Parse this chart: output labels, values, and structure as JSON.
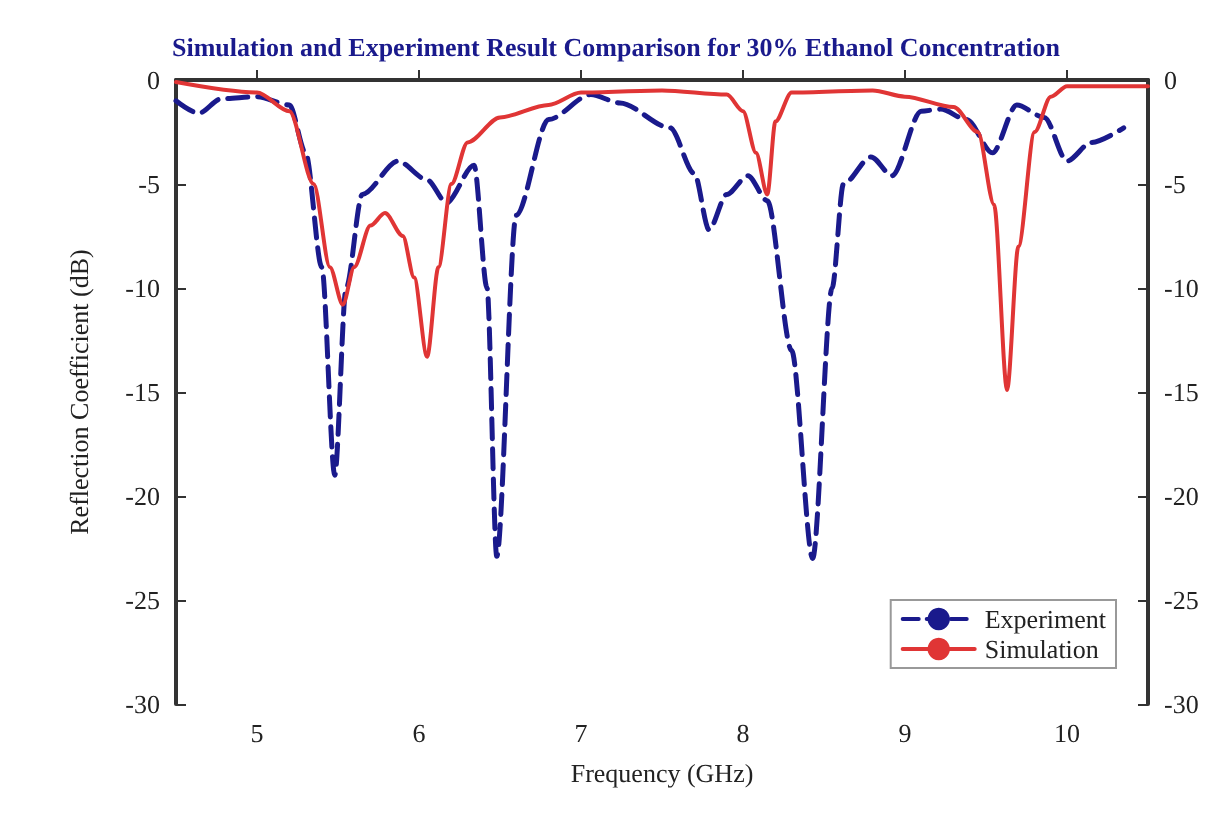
{
  "chart_data": {
    "type": "line",
    "title": "Simulation and Experiment Result Comparison for 30% Ethanol Concentration",
    "xlabel": "Frequency (GHz)",
    "ylabel": "Reflection Coefficient (dB)",
    "xlim": [
      4.5,
      10.5
    ],
    "xticks": [
      5,
      6,
      7,
      8,
      9,
      10
    ],
    "ylim": [
      -30,
      0
    ],
    "yticks": [
      -30,
      -25,
      -20,
      -15,
      -10,
      -5,
      0
    ],
    "y2lim": [
      -30,
      0
    ],
    "y2ticks": [
      -30,
      -25,
      -20,
      -15,
      -10,
      -5,
      0
    ],
    "grid": false,
    "legend": "bottom right",
    "series": [
      {
        "name": "Experiment",
        "color": "#1a1a8c",
        "line_style": "dashed",
        "x": [
          4.5,
          4.64,
          4.78,
          5.0,
          5.2,
          5.3,
          5.4,
          5.48,
          5.55,
          5.65,
          5.87,
          6.05,
          6.17,
          6.34,
          6.42,
          6.48,
          6.6,
          6.8,
          7.06,
          7.24,
          7.55,
          7.7,
          7.79,
          7.9,
          8.03,
          8.15,
          8.3,
          8.43,
          8.55,
          8.62,
          8.79,
          8.92,
          9.1,
          9.22,
          9.38,
          9.54,
          9.69,
          9.86,
          10.0,
          10.15,
          10.35
        ],
        "values": [
          -1.0,
          -1.6,
          -0.9,
          -0.8,
          -1.2,
          -3.5,
          -9,
          -19,
          -10,
          -5.5,
          -3.9,
          -4.8,
          -5.9,
          -4.1,
          -10,
          -22.9,
          -6.5,
          -1.9,
          -0.7,
          -1.1,
          -2.3,
          -4.5,
          -7.2,
          -5.5,
          -4.6,
          -5.8,
          -13,
          -23,
          -10,
          -5,
          -3.7,
          -4.6,
          -1.5,
          -1.4,
          -1.9,
          -3.5,
          -1.2,
          -1.8,
          -3.9,
          -3,
          -2.3
        ]
      },
      {
        "name": "Simulation",
        "color": "#e03535",
        "line_style": "solid",
        "x": [
          4.5,
          5.0,
          5.2,
          5.35,
          5.45,
          5.53,
          5.6,
          5.7,
          5.79,
          5.9,
          5.97,
          6.05,
          6.12,
          6.2,
          6.3,
          6.5,
          6.8,
          7.0,
          7.5,
          7.9,
          8.0,
          8.08,
          8.15,
          8.2,
          8.3,
          8.8,
          9.0,
          9.3,
          9.45,
          9.55,
          9.63,
          9.7,
          9.8,
          9.9,
          10.0,
          10.5
        ],
        "values": [
          -0.1,
          -0.6,
          -1.5,
          -5,
          -9,
          -10.8,
          -9,
          -7,
          -6.4,
          -7.5,
          -9.5,
          -13.3,
          -9,
          -5,
          -3,
          -1.8,
          -1.2,
          -0.6,
          -0.5,
          -0.7,
          -1.5,
          -3.5,
          -5.5,
          -2,
          -0.6,
          -0.5,
          -0.8,
          -1.3,
          -2.5,
          -6,
          -14.9,
          -8,
          -2.5,
          -0.8,
          -0.3,
          -0.3
        ]
      }
    ]
  }
}
